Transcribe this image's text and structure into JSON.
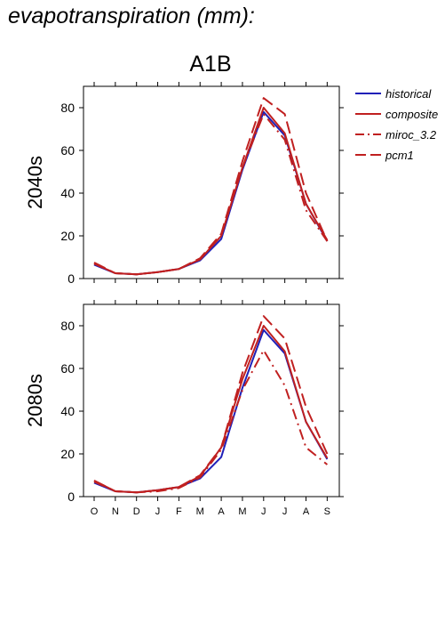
{
  "page": {
    "title": "evapotranspiration (mm):"
  },
  "scenario_label": "A1B",
  "colors": {
    "historical": "#2020b8",
    "projection": "#c02020",
    "frame": "#000000"
  },
  "legend": {
    "placement": "top-right",
    "entries": [
      {
        "name": "historical",
        "color": "#2020b8",
        "dash": "solid"
      },
      {
        "name": "composite",
        "color": "#c02020",
        "dash": "solid"
      },
      {
        "name": "miroc_3.2",
        "color": "#c02020",
        "dash": "dashdot"
      },
      {
        "name": "pcm1",
        "color": "#c02020",
        "dash": "dashed"
      }
    ]
  },
  "chart_data": [
    {
      "type": "line",
      "panel": "2040s",
      "ylabel": "2040s",
      "ylim": [
        0,
        90
      ],
      "yticks": [
        0,
        20,
        40,
        60,
        80
      ],
      "categories": [
        "O",
        "N",
        "D",
        "J",
        "F",
        "M",
        "A",
        "M",
        "J",
        "J",
        "A",
        "S"
      ],
      "series": [
        {
          "name": "historical",
          "values": [
            6.5,
            2.5,
            2.0,
            3.0,
            4.5,
            8.5,
            18.5,
            51,
            78,
            67,
            35,
            17.5
          ]
        },
        {
          "name": "composite",
          "values": [
            7.0,
            2.5,
            2.0,
            3.0,
            4.5,
            9.0,
            20,
            52,
            80,
            68,
            35,
            18
          ]
        },
        {
          "name": "miroc_3.2",
          "values": [
            7.0,
            2.5,
            2.0,
            3.0,
            4.5,
            9.0,
            20,
            52,
            77,
            65,
            32,
            17.5
          ]
        },
        {
          "name": "pcm1",
          "values": [
            7.5,
            2.5,
            2.0,
            3.0,
            4.5,
            9.5,
            21,
            55,
            84.5,
            77,
            40,
            17.5
          ]
        }
      ]
    },
    {
      "type": "line",
      "panel": "2080s",
      "ylabel": "2080s",
      "ylim": [
        0,
        90
      ],
      "yticks": [
        0,
        20,
        40,
        60,
        80
      ],
      "categories": [
        "O",
        "N",
        "D",
        "J",
        "F",
        "M",
        "A",
        "M",
        "J",
        "J",
        "A",
        "S"
      ],
      "series": [
        {
          "name": "historical",
          "values": [
            6.5,
            2.5,
            2.0,
            3.0,
            4.5,
            8.5,
            18.5,
            51,
            78,
            67,
            35,
            17.5
          ]
        },
        {
          "name": "composite",
          "values": [
            7.5,
            2.5,
            2.0,
            3.0,
            4.5,
            9.5,
            23,
            55,
            80,
            68,
            35,
            18
          ]
        },
        {
          "name": "miroc_3.2",
          "values": [
            7.0,
            2.5,
            2.0,
            2.5,
            4.0,
            9.0,
            22,
            50,
            68.5,
            52,
            23,
            15
          ]
        },
        {
          "name": "pcm1",
          "values": [
            7.5,
            2.5,
            2.0,
            3.0,
            4.5,
            10,
            23,
            58,
            84.5,
            74,
            42,
            20
          ]
        }
      ]
    }
  ]
}
